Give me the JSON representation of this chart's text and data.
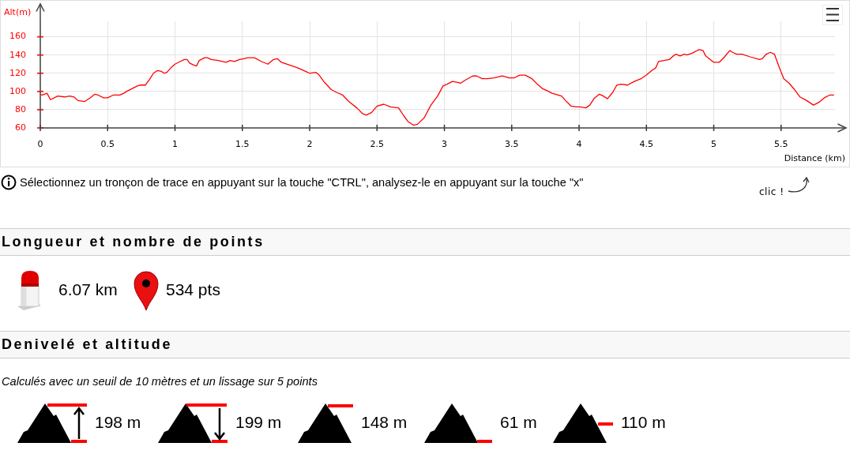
{
  "chart_data": {
    "type": "line",
    "xlabel": "Distance (km)",
    "ylabel": "Alt(m)",
    "xlim": [
      0,
      5.9
    ],
    "xticks": [
      0,
      0.5,
      1,
      1.5,
      2,
      2.5,
      3,
      3.5,
      4,
      4.5,
      5,
      5.5
    ],
    "ylim": [
      60,
      177
    ],
    "yticks": [
      60,
      80,
      100,
      120,
      140,
      160
    ],
    "grid": true,
    "x": [
      0,
      0.014,
      0.03,
      0.05,
      0.076,
      0.13,
      0.18,
      0.22,
      0.25,
      0.28,
      0.33,
      0.37,
      0.405,
      0.43,
      0.47,
      0.5,
      0.54,
      0.59,
      0.62,
      0.64,
      0.68,
      0.72,
      0.74,
      0.78,
      0.81,
      0.84,
      0.87,
      0.9,
      0.92,
      0.94,
      0.97,
      1.0,
      1.04,
      1.07,
      1.09,
      1.11,
      1.14,
      1.16,
      1.18,
      1.22,
      1.24,
      1.27,
      1.32,
      1.38,
      1.41,
      1.44,
      1.48,
      1.51,
      1.54,
      1.59,
      1.64,
      1.69,
      1.73,
      1.76,
      1.79,
      1.85,
      1.91,
      1.97,
      2.0,
      2.045,
      2.07,
      2.11,
      2.16,
      2.2,
      2.245,
      2.29,
      2.35,
      2.39,
      2.42,
      2.46,
      2.5,
      2.55,
      2.6,
      2.66,
      2.7,
      2.73,
      2.77,
      2.8,
      2.85,
      2.9,
      2.95,
      2.99,
      3.02,
      3.06,
      3.1,
      3.12,
      3.15,
      3.21,
      3.24,
      3.28,
      3.32,
      3.37,
      3.43,
      3.48,
      3.52,
      3.56,
      3.6,
      3.65,
      3.69,
      3.73,
      3.76,
      3.8,
      3.87,
      3.9,
      3.94,
      3.98,
      4.01,
      4.05,
      4.08,
      4.11,
      4.15,
      4.18,
      4.21,
      4.25,
      4.28,
      4.31,
      4.36,
      4.41,
      4.46,
      4.5,
      4.54,
      4.57,
      4.59,
      4.63,
      4.67,
      4.7,
      4.72,
      4.75,
      4.78,
      4.8,
      4.84,
      4.89,
      4.92,
      4.94,
      5.0,
      5.04,
      5.08,
      5.12,
      5.14,
      5.17,
      5.21,
      5.27,
      5.34,
      5.36,
      5.39,
      5.42,
      5.45,
      5.49,
      5.52,
      5.56,
      5.6,
      5.64,
      5.69,
      5.74,
      5.78,
      5.82,
      5.86,
      5.89
    ],
    "series": [
      {
        "color": "#ff0000",
        "values": [
          97,
          96,
          97,
          98,
          91,
          95,
          94,
          95,
          94,
          90,
          89,
          93,
          97,
          96,
          93,
          93,
          96,
          96,
          98,
          100,
          103,
          106,
          107,
          107,
          113,
          120,
          123,
          122,
          120,
          121,
          126,
          130,
          133,
          135,
          135,
          131,
          129,
          128,
          134,
          137,
          137,
          135,
          134,
          132,
          134,
          133,
          135,
          136,
          137,
          137,
          133,
          130,
          135,
          136,
          132,
          129,
          126,
          122,
          120,
          121,
          118,
          110,
          102,
          99,
          96,
          89,
          82,
          76,
          74,
          77,
          84,
          86,
          83,
          82,
          73,
          67,
          63,
          64,
          71,
          85,
          95,
          106,
          108,
          111,
          110,
          109,
          112,
          117,
          117,
          114,
          114,
          115,
          117,
          115,
          115,
          118,
          118,
          114,
          108,
          103,
          101,
          98,
          95,
          90,
          84,
          83,
          83,
          82,
          85,
          92,
          97,
          95,
          92,
          99,
          107,
          108,
          107,
          111,
          114,
          118,
          123,
          126,
          133,
          134,
          135,
          139,
          141,
          139,
          141,
          140,
          142,
          146,
          145,
          139,
          132,
          132,
          138,
          145,
          143,
          141,
          141,
          138,
          135,
          136,
          141,
          143,
          141,
          125,
          114,
          109,
          102,
          94,
          90,
          85,
          88,
          93,
          96,
          96
        ]
      }
    ],
    "annotations": [
      "Sélectionnez un tronçon de trace en appuyant sur la touche \"CTRL\", analysez-le en appuyant sur la touche \"x\"",
      "clic !",
      "Longueur et nombre de points",
      "6.07 km",
      "534 pts",
      "Denivelé et altitude",
      "Calculés avec un seuil de 10 mètres et un lissage sur 5 points",
      "198 m",
      "199 m",
      "148 m",
      "61 m",
      "110 m"
    ]
  }
}
